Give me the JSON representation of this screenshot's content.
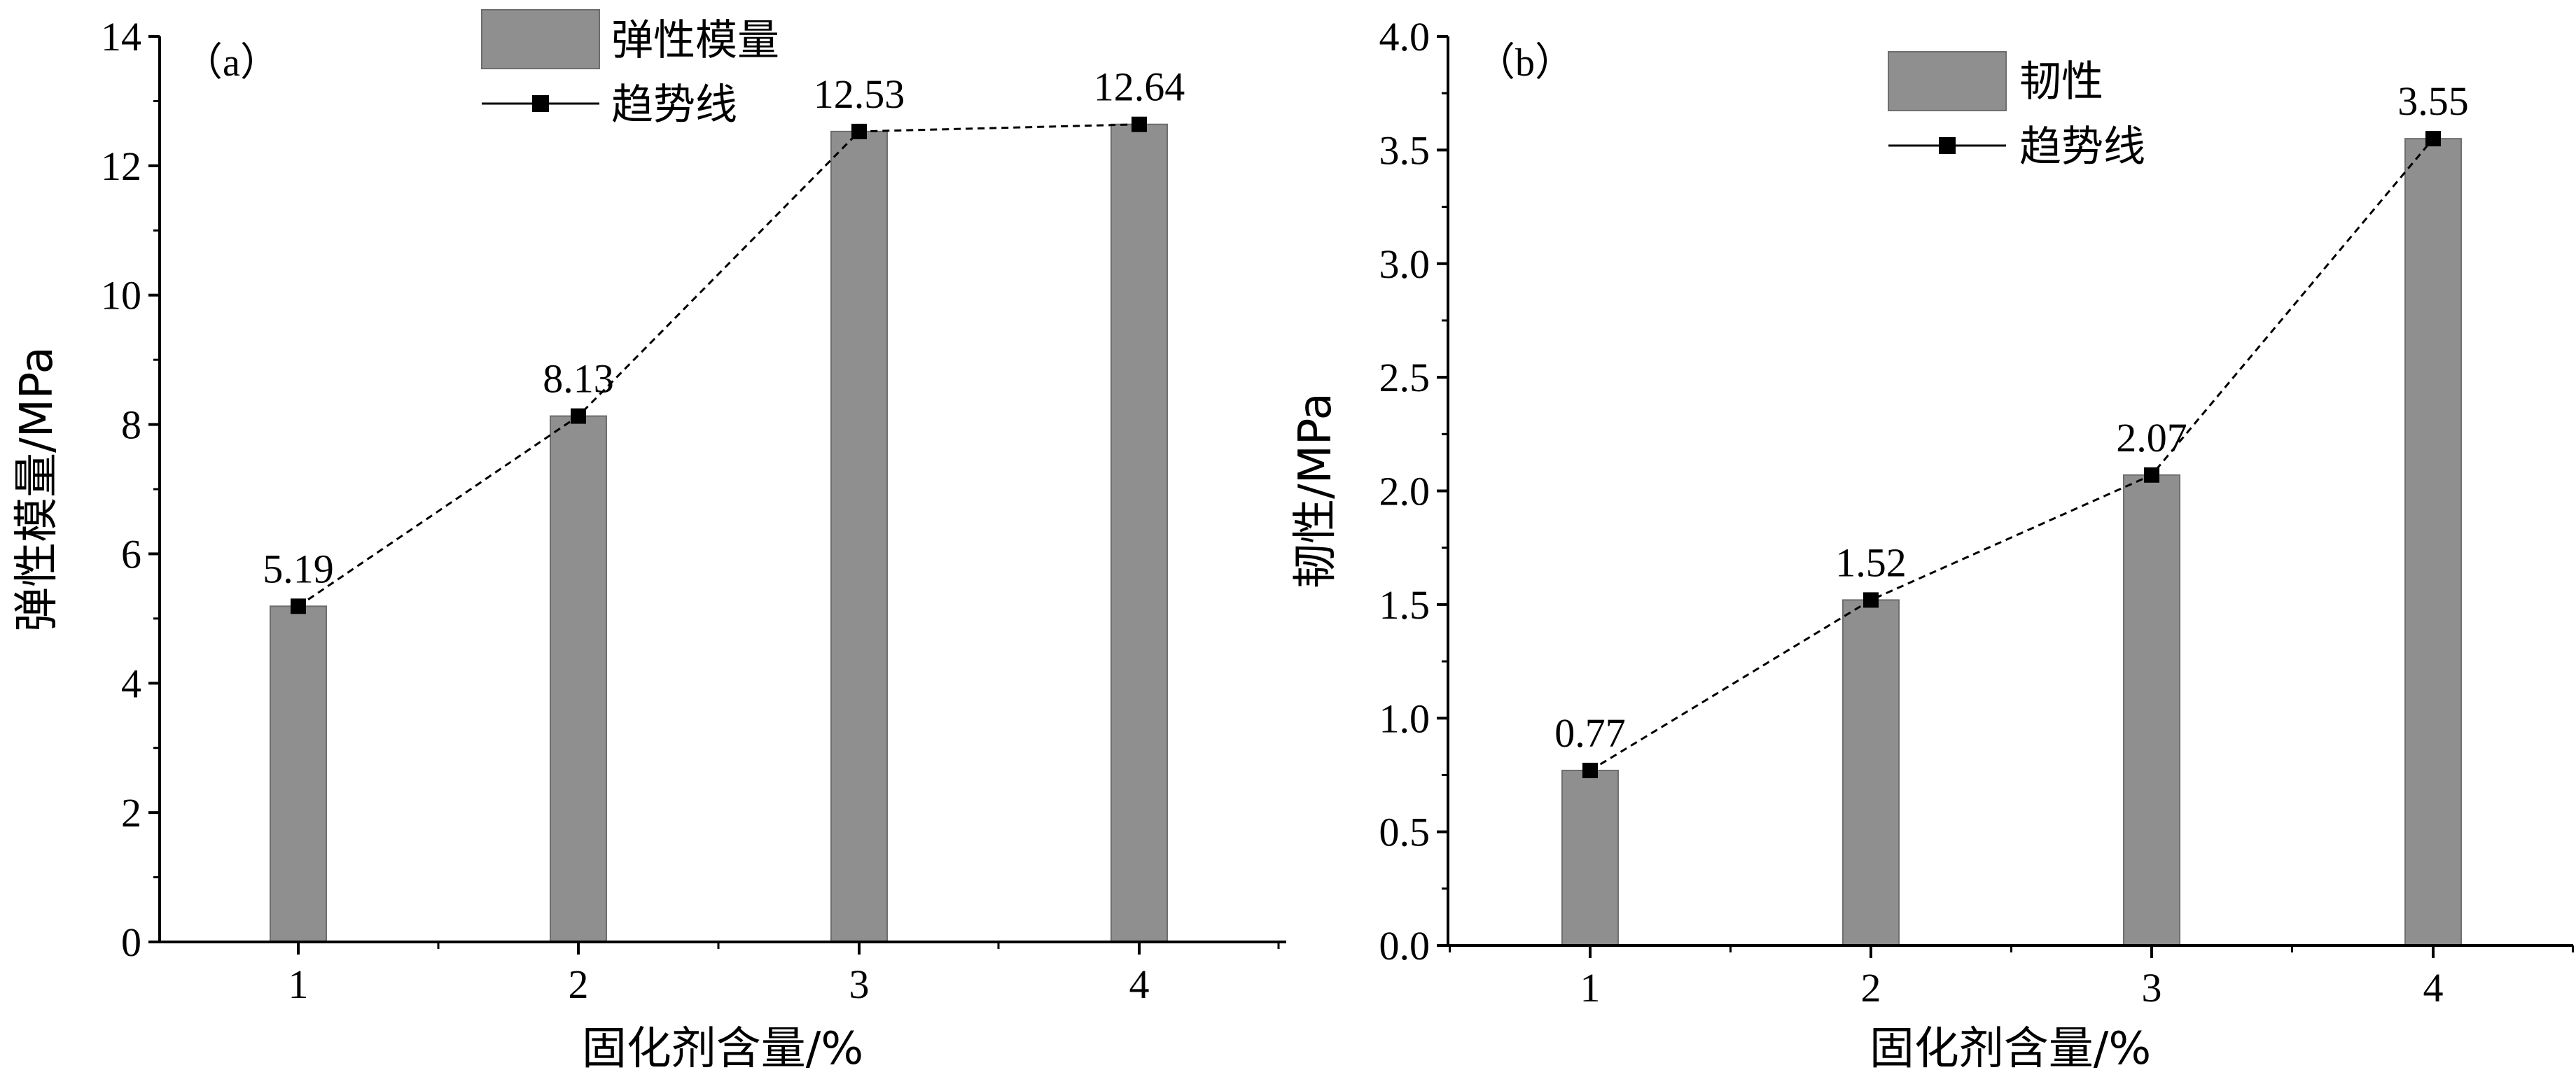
{
  "chart_data": [
    {
      "type": "bar",
      "panel_label": "（a）",
      "categories": [
        "1",
        "2",
        "3",
        "4"
      ],
      "values": [
        5.19,
        8.13,
        12.53,
        12.64
      ],
      "data_labels": [
        "5.19",
        "8.13",
        "12.53",
        "12.64"
      ],
      "series": [
        {
          "name": "弹性模量",
          "type": "bar",
          "values": [
            5.19,
            8.13,
            12.53,
            12.64
          ]
        },
        {
          "name": "趋势线",
          "type": "line",
          "values": [
            5.19,
            8.13,
            12.53,
            12.64
          ]
        }
      ],
      "xlabel": "固化剂含量/%",
      "ylabel": "弹性模量/MPa",
      "ylim": [
        0,
        14
      ],
      "yticks": [
        0,
        2,
        4,
        6,
        8,
        10,
        12,
        14
      ],
      "ytick_labels": [
        "0",
        "2",
        "4",
        "6",
        "8",
        "10",
        "12",
        "14"
      ],
      "grid": false,
      "legend_position": "top-center",
      "colors": {
        "bar": "#8f8f8f",
        "bar_edge": "#6e6e6e",
        "line": "#000000"
      }
    },
    {
      "type": "bar",
      "panel_label": "（b）",
      "categories": [
        "1",
        "2",
        "3",
        "4"
      ],
      "values": [
        0.77,
        1.52,
        2.07,
        3.55
      ],
      "data_labels": [
        "0.77",
        "1.52",
        "2.07",
        "3.55"
      ],
      "series": [
        {
          "name": "韧性",
          "type": "bar",
          "values": [
            0.77,
            1.52,
            2.07,
            3.55
          ]
        },
        {
          "name": "趋势线",
          "type": "line",
          "values": [
            0.77,
            1.52,
            2.07,
            3.55
          ]
        }
      ],
      "xlabel": "固化剂含量/%",
      "ylabel": "韧性/MPa",
      "ylim": [
        0,
        4
      ],
      "yticks": [
        0,
        0.5,
        1,
        1.5,
        2,
        2.5,
        3,
        3.5,
        4
      ],
      "ytick_labels": [
        "0.0",
        "0.5",
        "1.0",
        "1.5",
        "2.0",
        "2.5",
        "3.0",
        "3.5",
        "4.0"
      ],
      "grid": false,
      "legend_position": "top-center",
      "colors": {
        "bar": "#8f8f8f",
        "bar_edge": "#6e6e6e",
        "line": "#000000"
      }
    }
  ]
}
